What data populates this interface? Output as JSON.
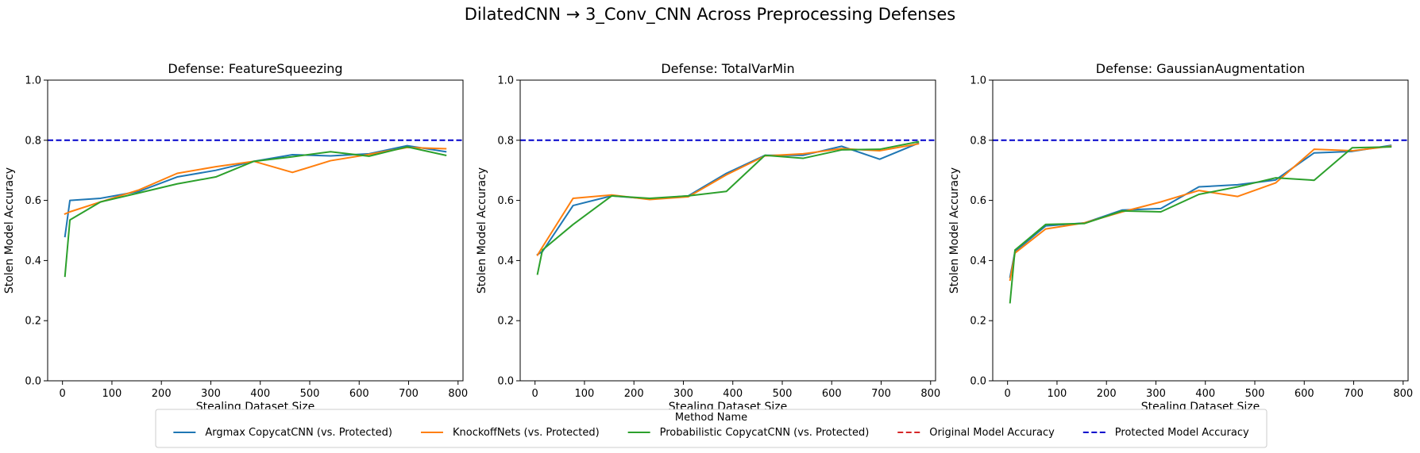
{
  "figure": {
    "suptitle": "DilatedCNN → 3_Conv_CNN Across Preprocessing Defenses"
  },
  "legend": {
    "title": "Method Name",
    "placement": "bottom-center",
    "entries": [
      {
        "label": "Argmax CopycatCNN (vs. Protected)",
        "color": "#1f77b4",
        "style": "solid"
      },
      {
        "label": "KnockoffNets (vs. Protected)",
        "color": "#ff7f0e",
        "style": "solid"
      },
      {
        "label": "Probabilistic CopycatCNN (vs. Protected)",
        "color": "#2ca02c",
        "style": "solid"
      },
      {
        "label": "Original Model Accuracy",
        "color": "#d62728",
        "style": "dashed"
      },
      {
        "label": "Protected Model Accuracy",
        "color": "#0000cc",
        "style": "dashed"
      }
    ]
  },
  "chart_data": [
    {
      "type": "line",
      "title": "Defense: FeatureSqueezing",
      "xlabel": "Stealing Dataset Size",
      "ylabel": "Stolen Model Accuracy",
      "xlim": [
        -30,
        810
      ],
      "ylim": [
        0,
        1
      ],
      "xticks": [
        0,
        100,
        200,
        300,
        400,
        500,
        600,
        700,
        800
      ],
      "yticks": [
        0.0,
        0.2,
        0.4,
        0.6,
        0.8,
        1.0
      ],
      "grid": false,
      "hlines": [
        {
          "name": "Protected Model Accuracy",
          "y": 0.8
        }
      ],
      "series": [
        {
          "name": "Argmax CopycatCNN (vs. Protected)",
          "x": [
            5,
            15,
            77,
            155,
            232,
            310,
            387,
            465,
            542,
            620,
            697,
            775
          ],
          "y": [
            0.48,
            0.6,
            0.607,
            0.63,
            0.678,
            0.7,
            0.73,
            0.752,
            0.748,
            0.755,
            0.782,
            0.762
          ]
        },
        {
          "name": "KnockoffNets (vs. Protected)",
          "x": [
            5,
            15,
            77,
            155,
            232,
            310,
            387,
            465,
            542,
            620,
            697,
            775
          ],
          "y": [
            0.555,
            0.562,
            0.595,
            0.635,
            0.69,
            0.712,
            0.73,
            0.693,
            0.732,
            0.753,
            0.776,
            0.772
          ]
        },
        {
          "name": "Probabilistic CopycatCNN (vs. Protected)",
          "x": [
            5,
            15,
            77,
            155,
            232,
            310,
            387,
            465,
            542,
            620,
            697,
            775
          ],
          "y": [
            0.348,
            0.535,
            0.595,
            0.625,
            0.655,
            0.678,
            0.73,
            0.745,
            0.762,
            0.747,
            0.778,
            0.75
          ]
        }
      ]
    },
    {
      "type": "line",
      "title": "Defense: TotalVarMin",
      "xlabel": "Stealing Dataset Size",
      "ylabel": "Stolen Model Accuracy",
      "xlim": [
        -30,
        810
      ],
      "ylim": [
        0,
        1
      ],
      "xticks": [
        0,
        100,
        200,
        300,
        400,
        500,
        600,
        700,
        800
      ],
      "yticks": [
        0.0,
        0.2,
        0.4,
        0.6,
        0.8,
        1.0
      ],
      "grid": false,
      "hlines": [
        {
          "name": "Protected Model Accuracy",
          "y": 0.8
        }
      ],
      "series": [
        {
          "name": "Argmax CopycatCNN (vs. Protected)",
          "x": [
            5,
            15,
            77,
            155,
            232,
            310,
            387,
            465,
            542,
            620,
            697,
            775
          ],
          "y": [
            0.42,
            0.43,
            0.583,
            0.615,
            0.605,
            0.615,
            0.69,
            0.75,
            0.75,
            0.78,
            0.737,
            0.79
          ]
        },
        {
          "name": "KnockoffNets (vs. Protected)",
          "x": [
            5,
            15,
            77,
            155,
            232,
            310,
            387,
            465,
            542,
            620,
            697,
            775
          ],
          "y": [
            0.418,
            0.445,
            0.607,
            0.618,
            0.603,
            0.612,
            0.685,
            0.748,
            0.755,
            0.772,
            0.765,
            0.788
          ]
        },
        {
          "name": "Probabilistic CopycatCNN (vs. Protected)",
          "x": [
            5,
            15,
            77,
            155,
            232,
            310,
            387,
            465,
            542,
            620,
            697,
            775
          ],
          "y": [
            0.355,
            0.435,
            0.52,
            0.615,
            0.607,
            0.615,
            0.63,
            0.75,
            0.74,
            0.768,
            0.77,
            0.795
          ]
        }
      ]
    },
    {
      "type": "line",
      "title": "Defense: GaussianAugmentation",
      "xlabel": "Stealing Dataset Size",
      "ylabel": "Stolen Model Accuracy",
      "xlim": [
        -30,
        810
      ],
      "ylim": [
        0,
        1
      ],
      "xticks": [
        0,
        100,
        200,
        300,
        400,
        500,
        600,
        700,
        800
      ],
      "yticks": [
        0.0,
        0.2,
        0.4,
        0.6,
        0.8,
        1.0
      ],
      "grid": false,
      "hlines": [
        {
          "name": "Protected Model Accuracy",
          "y": 0.8
        }
      ],
      "series": [
        {
          "name": "Argmax CopycatCNN (vs. Protected)",
          "x": [
            5,
            15,
            77,
            155,
            232,
            310,
            387,
            465,
            542,
            620,
            697,
            775
          ],
          "y": [
            0.345,
            0.43,
            0.515,
            0.525,
            0.568,
            0.573,
            0.645,
            0.652,
            0.668,
            0.758,
            0.763,
            0.783
          ]
        },
        {
          "name": "KnockoffNets (vs. Protected)",
          "x": [
            5,
            15,
            77,
            155,
            232,
            310,
            387,
            465,
            542,
            620,
            697,
            775
          ],
          "y": [
            0.335,
            0.425,
            0.505,
            0.525,
            0.562,
            0.595,
            0.633,
            0.613,
            0.658,
            0.77,
            0.765,
            0.78
          ]
        },
        {
          "name": "Probabilistic CopycatCNN (vs. Protected)",
          "x": [
            5,
            15,
            77,
            155,
            232,
            310,
            387,
            465,
            542,
            620,
            697,
            775
          ],
          "y": [
            0.26,
            0.435,
            0.52,
            0.523,
            0.565,
            0.562,
            0.62,
            0.645,
            0.675,
            0.667,
            0.775,
            0.778
          ]
        }
      ]
    }
  ]
}
